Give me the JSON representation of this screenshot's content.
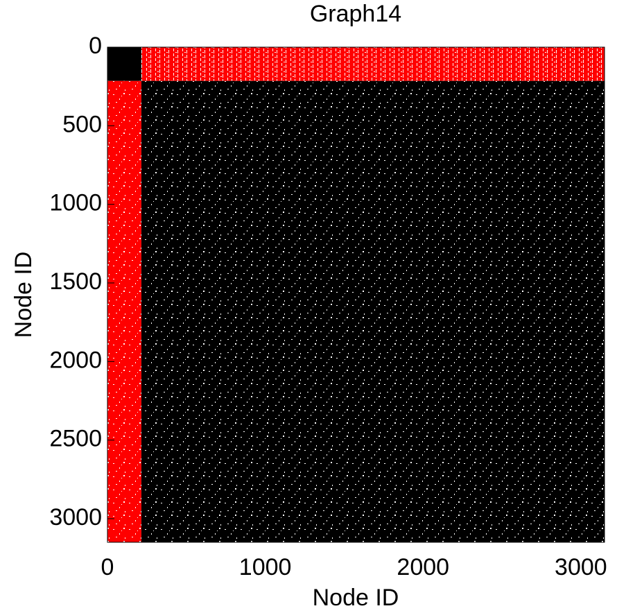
{
  "chart_data": {
    "type": "matrix",
    "title": "Graph14",
    "x_label": "Node ID",
    "y_label": "Node ID",
    "xlim": [
      0,
      3150
    ],
    "ylim": [
      0,
      3150
    ],
    "xticks": [
      0,
      1000,
      2000,
      3000
    ],
    "yticks": [
      0,
      500,
      1000,
      1500,
      2000,
      2500,
      3000
    ],
    "y_inverted": true,
    "blocks": [
      {
        "color": "#000000",
        "x": [
          0,
          215
        ],
        "y": [
          0,
          215
        ]
      },
      {
        "color": "#ff0000",
        "x": [
          215,
          3150
        ],
        "y": [
          0,
          215
        ]
      },
      {
        "color": "#ff0000",
        "x": [
          0,
          215
        ],
        "y": [
          215,
          3150
        ]
      },
      {
        "color": "#000000",
        "x": [
          215,
          3150
        ],
        "y": [
          215,
          3150
        ]
      }
    ]
  }
}
